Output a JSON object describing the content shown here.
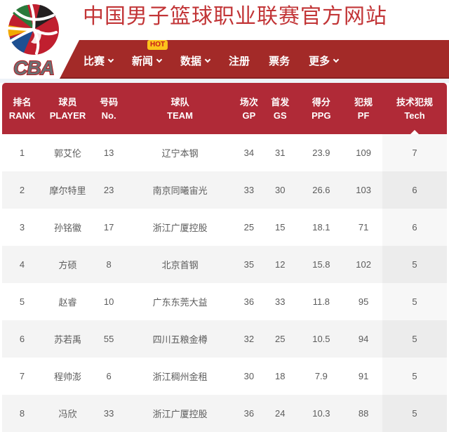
{
  "colors": {
    "title_red": "#c23537",
    "nav_red": "#a32a28",
    "header_red": "#b02a37",
    "hot_yellow": "#fcc21b",
    "hot_text": "#c61c1c",
    "row_alt": "#f4f4f4",
    "body_text": "#5c5c5c"
  },
  "logo": {
    "wordmark": "CBA"
  },
  "header": {
    "title": "中国男子篮球职业联赛官方网站"
  },
  "nav": {
    "items": [
      {
        "label": "比赛",
        "caret": true
      },
      {
        "label": "新闻",
        "caret": true,
        "badge": "HOT"
      },
      {
        "label": "数据",
        "caret": true
      },
      {
        "label": "注册",
        "caret": false
      },
      {
        "label": "票务",
        "caret": false
      },
      {
        "label": "更多",
        "caret": true
      }
    ]
  },
  "table": {
    "columns": [
      {
        "zh": "排名",
        "en": "RANK"
      },
      {
        "zh": "球员",
        "en": "PLAYER"
      },
      {
        "zh": "号码",
        "en": "No."
      },
      {
        "zh": "球队",
        "en": "TEAM"
      },
      {
        "zh": "场次",
        "en": "GP"
      },
      {
        "zh": "首发",
        "en": "GS"
      },
      {
        "zh": "得分",
        "en": "PPG"
      },
      {
        "zh": "犯规",
        "en": "PF"
      },
      {
        "zh": "技术犯规",
        "en": "Tech"
      }
    ],
    "sorted_column": "Tech",
    "rows": [
      {
        "rank": "1",
        "player": "郭艾伦",
        "no": "13",
        "team": "辽宁本钢",
        "gp": "34",
        "gs": "31",
        "ppg": "23.9",
        "pf": "109",
        "tech": "7"
      },
      {
        "rank": "2",
        "player": "摩尔特里",
        "no": "23",
        "team": "南京同曦宙光",
        "gp": "33",
        "gs": "30",
        "ppg": "26.6",
        "pf": "103",
        "tech": "6"
      },
      {
        "rank": "3",
        "player": "孙铭徽",
        "no": "17",
        "team": "浙江广厦控股",
        "gp": "25",
        "gs": "15",
        "ppg": "18.1",
        "pf": "71",
        "tech": "6"
      },
      {
        "rank": "4",
        "player": "方硕",
        "no": "8",
        "team": "北京首钢",
        "gp": "35",
        "gs": "12",
        "ppg": "15.8",
        "pf": "102",
        "tech": "5"
      },
      {
        "rank": "5",
        "player": "赵睿",
        "no": "10",
        "team": "广东东莞大益",
        "gp": "36",
        "gs": "33",
        "ppg": "11.8",
        "pf": "95",
        "tech": "5"
      },
      {
        "rank": "6",
        "player": "苏若禹",
        "no": "55",
        "team": "四川五粮金樽",
        "gp": "32",
        "gs": "25",
        "ppg": "10.5",
        "pf": "94",
        "tech": "5"
      },
      {
        "rank": "7",
        "player": "程帅澎",
        "no": "6",
        "team": "浙江稠州金租",
        "gp": "30",
        "gs": "18",
        "ppg": "7.9",
        "pf": "91",
        "tech": "5"
      },
      {
        "rank": "8",
        "player": "冯欣",
        "no": "33",
        "team": "浙江广厦控股",
        "gp": "36",
        "gs": "24",
        "ppg": "10.3",
        "pf": "88",
        "tech": "5"
      }
    ]
  }
}
